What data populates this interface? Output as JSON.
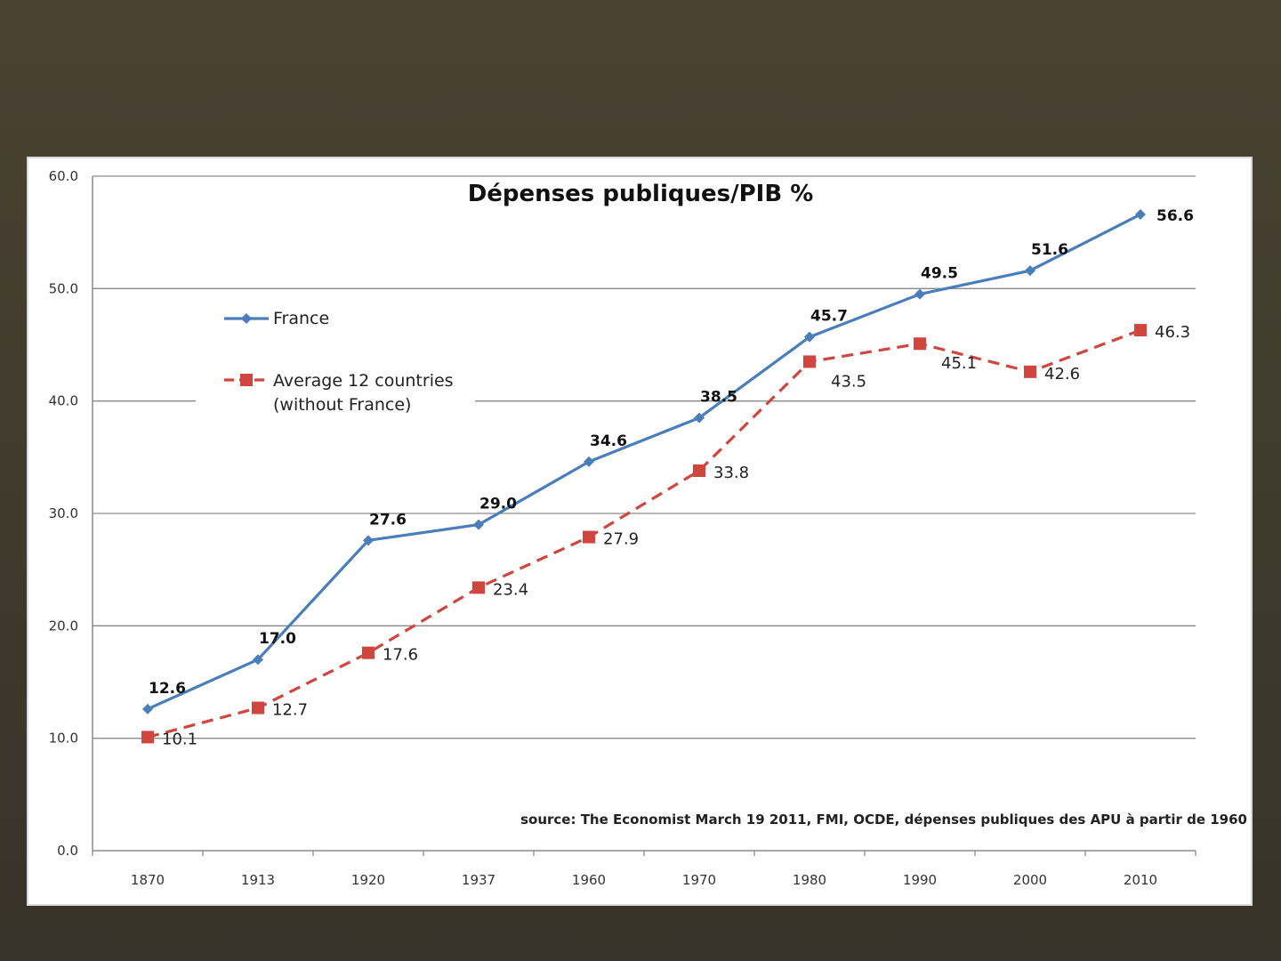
{
  "chart_data": {
    "type": "line",
    "title": "Dépenses publiques/PIB %",
    "categories": [
      "1870",
      "1913",
      "1920",
      "1937",
      "1960",
      "1970",
      "1980",
      "1990",
      "2000",
      "2010"
    ],
    "series": [
      {
        "name": "France",
        "values": [
          12.6,
          17.0,
          27.6,
          29.0,
          34.6,
          38.5,
          45.7,
          49.5,
          51.6,
          56.6
        ],
        "labels": [
          "12.6",
          "17.0",
          "27.6",
          "29.0",
          "34.6",
          "38.5",
          "45.7",
          "49.5",
          "51.6",
          "56.6"
        ],
        "color": "#4a7ebb",
        "line_style": "solid",
        "marker": "diamond"
      },
      {
        "name": "Average 12 countries (without France)",
        "values": [
          10.1,
          12.7,
          17.6,
          23.4,
          27.9,
          33.8,
          43.5,
          45.1,
          42.6,
          46.3
        ],
        "labels": [
          "10.1",
          "12.7",
          "17.6",
          "23.4",
          "27.9",
          "33.8",
          "43.5",
          "45.1",
          "42.6",
          "46.3"
        ],
        "color": "#d0453d",
        "line_style": "dashed",
        "marker": "square"
      }
    ],
    "yticks": [
      "0.0",
      "10.0",
      "20.0",
      "30.0",
      "40.0",
      "50.0",
      "60.0"
    ],
    "ylim": [
      0,
      60
    ],
    "grid": "horizontal",
    "legend": {
      "position": "upper-left",
      "items": [
        {
          "lines": [
            "France"
          ]
        },
        {
          "lines": [
            "Average 12 countries",
            "(without France)"
          ]
        }
      ]
    },
    "source": "source: The Economist March 19 2011,  FMI, OCDE, dépenses publiques des APU à partir de 1960"
  }
}
